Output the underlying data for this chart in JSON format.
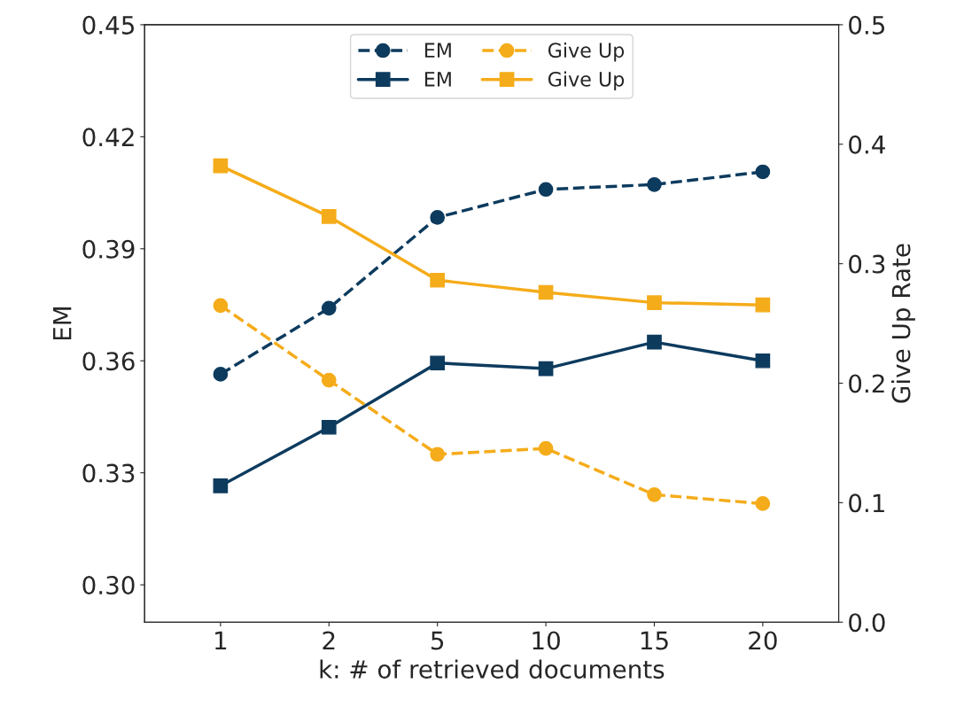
{
  "chart_data": {
    "type": "line",
    "xlabel": "k: # of retrieved documents",
    "ylabel": "EM",
    "y2label": "Give Up Rate",
    "categories": [
      "1",
      "2",
      "5",
      "10",
      "15",
      "20"
    ],
    "ylim": [
      0.29,
      0.45
    ],
    "yticks": [
      {
        "value": 0.3,
        "label": "0.30"
      },
      {
        "value": 0.33,
        "label": "0.33"
      },
      {
        "value": 0.36,
        "label": "0.36"
      },
      {
        "value": 0.39,
        "label": "0.39"
      },
      {
        "value": 0.42,
        "label": "0.42"
      },
      {
        "value": 0.45,
        "label": "0.45"
      }
    ],
    "y2lim": [
      0.0,
      0.5
    ],
    "y2ticks": [
      {
        "value": 0.0,
        "label": "0.0"
      },
      0.1,
      0.2,
      0.3,
      0.4,
      0.5
    ],
    "legend": "top",
    "grid": false,
    "series": [
      {
        "name": "EM",
        "color": "#0d3b5e",
        "marker": "circle",
        "line_style": "dashed",
        "axis": "y",
        "values": [
          0.3564,
          0.3741,
          0.3984,
          0.4059,
          0.4072,
          0.4106
        ]
      },
      {
        "name": "EM",
        "color": "#0d3b5e",
        "marker": "square",
        "line_style": "solid",
        "axis": "y",
        "values": [
          0.3265,
          0.3422,
          0.3594,
          0.3579,
          0.365,
          0.36
        ]
      },
      {
        "name": "Give Up",
        "color": "#f5ac1a",
        "marker": "circle",
        "line_style": "dashed",
        "axis": "y2",
        "values": [
          0.265,
          0.2025,
          0.1405,
          0.1454,
          0.1067,
          0.0992
        ]
      },
      {
        "name": "Give Up",
        "color": "#f5ac1a",
        "marker": "square",
        "line_style": "solid",
        "axis": "y2",
        "values": [
          0.382,
          0.3395,
          0.2862,
          0.276,
          0.2674,
          0.2655
        ]
      }
    ]
  }
}
